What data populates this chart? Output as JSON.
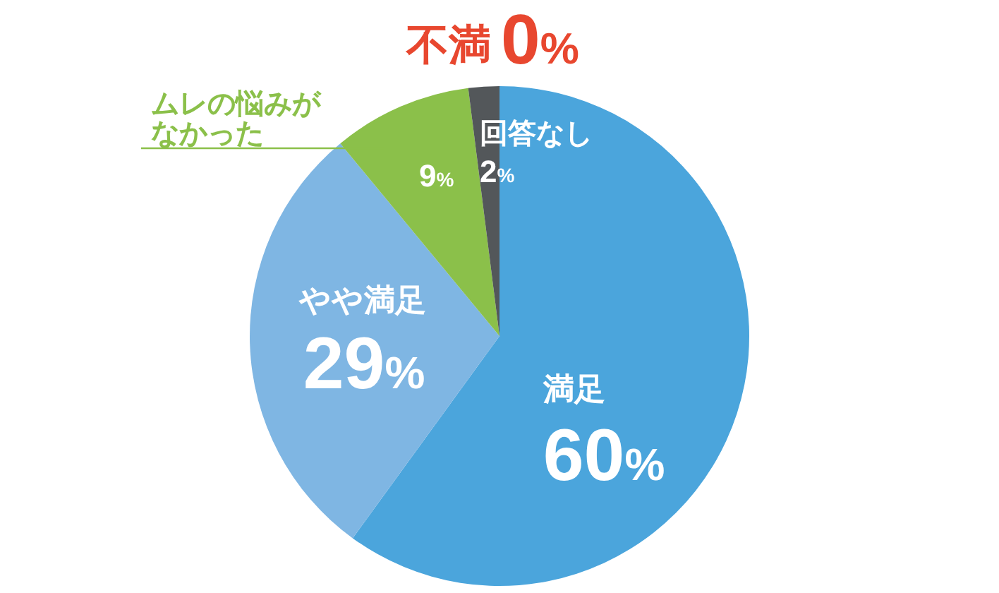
{
  "chart_data": {
    "type": "pie",
    "categories": [
      "満足",
      "やや満足",
      "ムレの悩みがなかった",
      "回答なし",
      "不満"
    ],
    "values": [
      60,
      29,
      9,
      2,
      0
    ],
    "colors": [
      "#4ba5dc",
      "#7fb6e3",
      "#8bc04a",
      "#53575a",
      "#e8472f"
    ],
    "value_labels": [
      "60%",
      "29%",
      "9%",
      "2%",
      "0%"
    ]
  }
}
